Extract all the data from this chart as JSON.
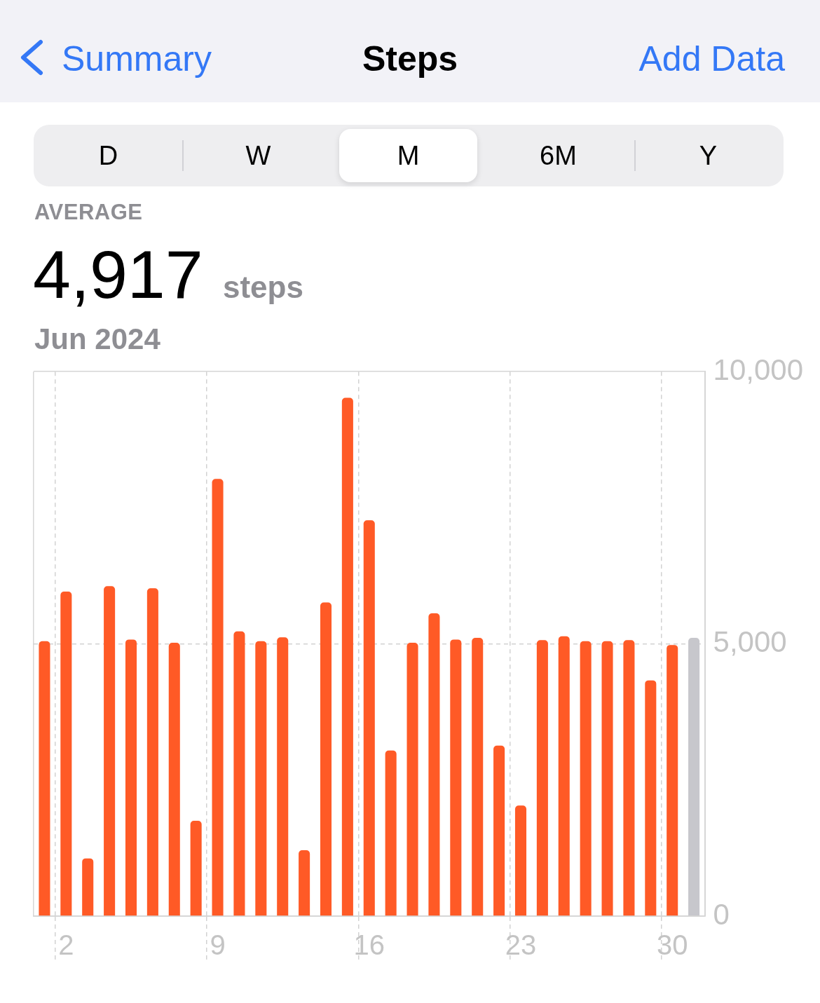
{
  "chart_data": {
    "type": "bar",
    "title": "Steps",
    "annotations": [
      "Summary",
      "Add Data",
      "D",
      "W",
      "M",
      "6M",
      "Y",
      "AVERAGE",
      "4,917",
      "steps",
      "Jun 2024"
    ],
    "categories": [
      null,
      "2",
      null,
      null,
      null,
      null,
      null,
      null,
      "9",
      null,
      null,
      null,
      null,
      null,
      null,
      "16",
      null,
      null,
      null,
      null,
      null,
      null,
      "23",
      null,
      null,
      null,
      null,
      null,
      null,
      "30",
      null
    ],
    "values": [
      5050,
      5960,
      1060,
      6060,
      5080,
      6020,
      5020,
      1750,
      8030,
      5230,
      5050,
      5120,
      1210,
      5760,
      9520,
      7270,
      3040,
      5020,
      5560,
      5080,
      5110,
      3130,
      2030,
      5070,
      5140,
      5050,
      5050,
      5070,
      4330,
      4980,
      5110
    ],
    "colors": [
      "#ff5a26",
      "#ff5a26",
      "#ff5a26",
      "#ff5a26",
      "#ff5a26",
      "#ff5a26",
      "#ff5a26",
      "#ff5a26",
      "#ff5a26",
      "#ff5a26",
      "#ff5a26",
      "#ff5a26",
      "#ff5a26",
      "#ff5a26",
      "#ff5a26",
      "#ff5a26",
      "#ff5a26",
      "#ff5a26",
      "#ff5a26",
      "#ff5a26",
      "#ff5a26",
      "#ff5a26",
      "#ff5a26",
      "#ff5a26",
      "#ff5a26",
      "#ff5a26",
      "#ff5a26",
      "#ff5a26",
      "#ff5a26",
      "#ff5a26",
      "#c7c7cc"
    ],
    "ylim": [
      0,
      10000
    ],
    "yticks": [
      0,
      {
        "value": 5000,
        "label": "5,000"
      },
      {
        "value": 10000,
        "label": "10,000"
      }
    ],
    "grid": true
  }
}
